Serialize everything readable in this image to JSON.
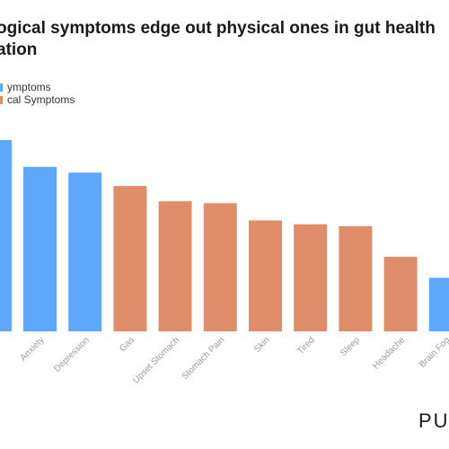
{
  "title": "ogical symptoms edge out physical ones in gut health ation",
  "title_lines": [
    "ogical symptoms edge out physical ones in gut health",
    "ation"
  ],
  "legend": [
    {
      "label": "ymptoms",
      "color": "#5ea7fb"
    },
    {
      "label": "cal Symptoms",
      "color": "#e08d69"
    }
  ],
  "brand": "PU",
  "chart_data": {
    "type": "bar",
    "categories": [
      "Anxiety",
      "Depression",
      "Gas",
      "Upset Stomach",
      "Stomach Pain",
      "Skin",
      "Tired",
      "Sleep",
      "Headache",
      "Brain Fog"
    ],
    "partial_leading_bar": {
      "value": 100,
      "group": "mental"
    },
    "values": [
      86,
      83,
      76,
      68,
      67,
      58,
      56,
      55,
      39,
      28
    ],
    "groups": [
      "mental",
      "mental",
      "physical",
      "physical",
      "physical",
      "physical",
      "physical",
      "physical",
      "physical",
      "mental"
    ],
    "colors": {
      "mental": "#5ea7fb",
      "physical": "#e08d69"
    },
    "ylim": [
      0,
      100
    ],
    "grid": false,
    "legend_position": "top-left",
    "xlabel": "",
    "ylabel": ""
  }
}
